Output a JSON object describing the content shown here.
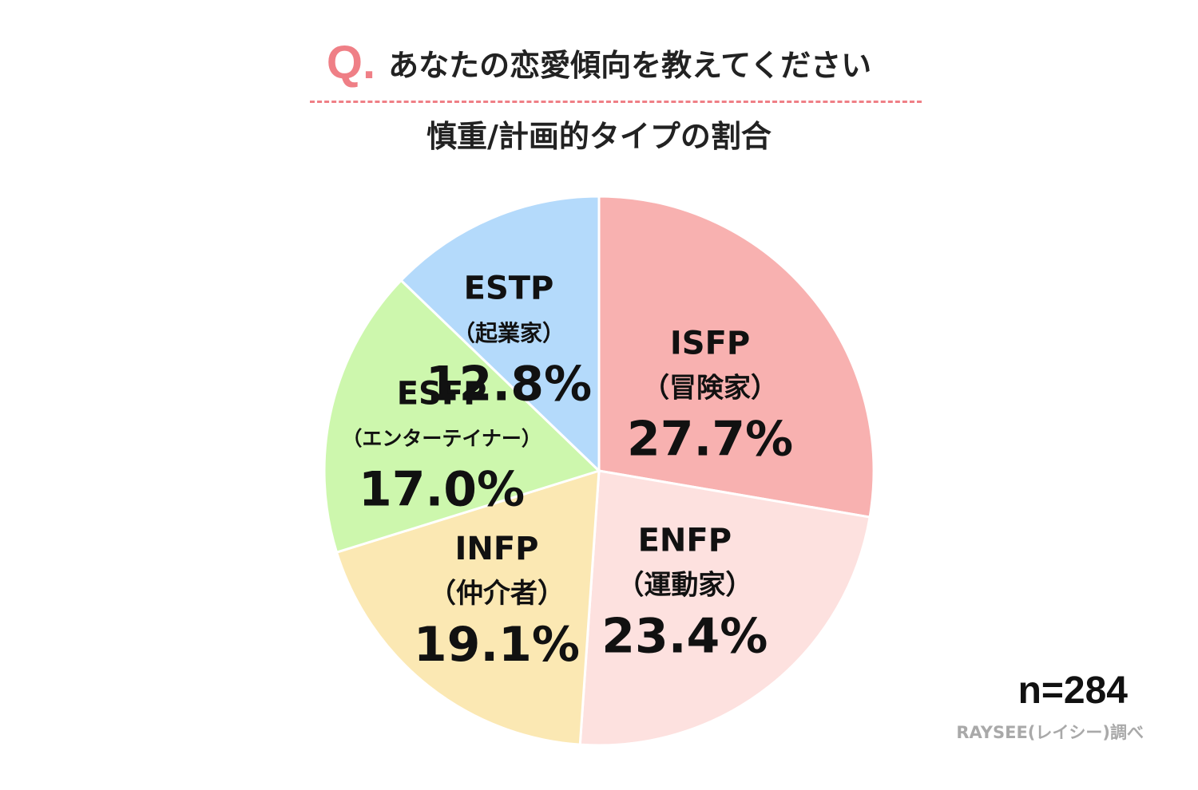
{
  "header": {
    "q_mark": "Q.",
    "question": "あなたの恋愛傾向を教えてください",
    "subtitle": "慎重/計画的タイプの割合"
  },
  "chart_data": {
    "type": "pie",
    "title": "あなたの恋愛傾向を教えてください",
    "subtitle": "慎重/計画的タイプの割合",
    "unit": "%",
    "start_angle": "12 o'clock",
    "direction": "clockwise",
    "slices": [
      {
        "name": "ISFP",
        "sub": "（冒険家）",
        "value": 27.7,
        "label": "27.7%",
        "color": "#f8b1b0"
      },
      {
        "name": "ENFP",
        "sub": "（運動家）",
        "value": 23.4,
        "label": "23.4%",
        "color": "#fde1df"
      },
      {
        "name": "INFP",
        "sub": "（仲介者）",
        "value": 19.1,
        "label": "19.1%",
        "color": "#fbe8b3"
      },
      {
        "name": "ESFP",
        "sub": "（エンターテイナー）",
        "value": 17.0,
        "label": "17.0%",
        "color": "#cdf7ad"
      },
      {
        "name": "ESTP",
        "sub": "（起業家）",
        "value": 12.8,
        "label": "12.8%",
        "color": "#b4dafb"
      }
    ]
  },
  "footer": {
    "n": "n=284",
    "source": "RAYSEE(レイシー)調べ"
  }
}
